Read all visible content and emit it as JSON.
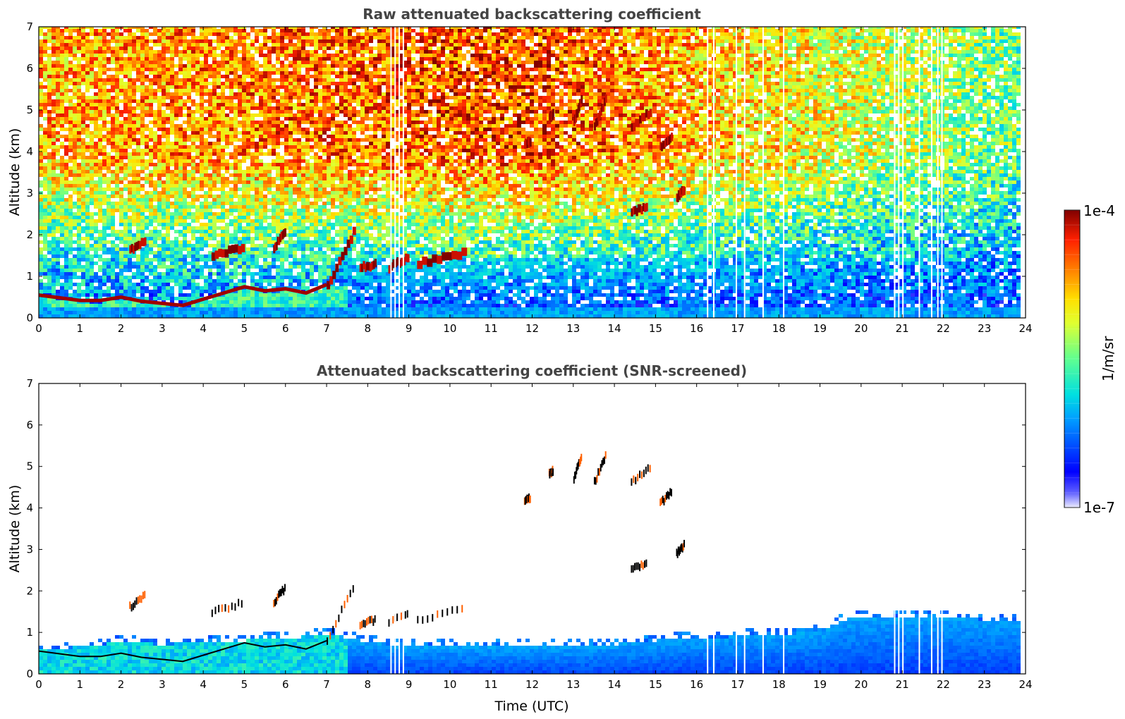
{
  "chart_data": [
    {
      "type": "heatmap",
      "title": "Raw attenuated backscattering coefficient",
      "xlabel": "",
      "ylabel": "Altitude (km)",
      "xlim": [
        0,
        24
      ],
      "ylim": [
        0,
        7
      ],
      "x_ticks": [
        "0",
        "1",
        "2",
        "3",
        "4",
        "5",
        "6",
        "7",
        "8",
        "9",
        "10",
        "11",
        "12",
        "13",
        "14",
        "15",
        "16",
        "17",
        "18",
        "19",
        "20",
        "21",
        "22",
        "23",
        "24"
      ],
      "y_ticks": [
        "0",
        "1",
        "2",
        "3",
        "4",
        "5",
        "6",
        "7"
      ],
      "data_end_time": 23.8,
      "grid": false,
      "boundary_layer_top_km": [
        [
          0.0,
          0.55
        ],
        [
          1.0,
          0.42
        ],
        [
          1.5,
          0.42
        ],
        [
          2.0,
          0.5
        ],
        [
          2.5,
          0.4
        ],
        [
          3.0,
          0.35
        ],
        [
          3.5,
          0.3
        ],
        [
          4.0,
          0.45
        ],
        [
          4.5,
          0.6
        ],
        [
          5.0,
          0.75
        ],
        [
          5.5,
          0.65
        ],
        [
          6.0,
          0.7
        ],
        [
          6.5,
          0.6
        ],
        [
          7.0,
          0.8
        ]
      ],
      "cloud_segments": [
        {
          "t": [
            7.0,
            7.7
          ],
          "alt": [
            0.8,
            2.2
          ]
        },
        {
          "t": [
            5.7,
            6.0
          ],
          "alt": [
            1.7,
            2.1
          ]
        },
        {
          "t": [
            4.2,
            5.0
          ],
          "alt": [
            1.5,
            1.7
          ]
        },
        {
          "t": [
            2.2,
            2.6
          ],
          "alt": [
            1.6,
            1.9
          ]
        },
        {
          "t": [
            7.8,
            8.2
          ],
          "alt": [
            1.2,
            1.3
          ]
        },
        {
          "t": [
            8.5,
            9.0
          ],
          "alt": [
            1.2,
            1.5
          ]
        },
        {
          "t": [
            9.2,
            10.4
          ],
          "alt": [
            1.3,
            1.6
          ]
        },
        {
          "t": [
            13.0,
            13.2
          ],
          "alt": [
            4.7,
            5.3
          ]
        },
        {
          "t": [
            13.5,
            13.8
          ],
          "alt": [
            4.6,
            5.3
          ]
        },
        {
          "t": [
            14.4,
            14.9
          ],
          "alt": [
            4.6,
            5.0
          ]
        },
        {
          "t": [
            15.1,
            15.4
          ],
          "alt": [
            4.1,
            4.4
          ]
        },
        {
          "t": [
            15.5,
            15.7
          ],
          "alt": [
            2.9,
            3.1
          ]
        },
        {
          "t": [
            14.4,
            14.8
          ],
          "alt": [
            2.55,
            2.65
          ]
        },
        {
          "t": [
            11.8,
            11.95
          ],
          "alt": [
            4.2,
            4.25
          ]
        },
        {
          "t": [
            12.4,
            12.5
          ],
          "alt": [
            4.8,
            4.9
          ]
        }
      ],
      "data_gaps_hours": [
        8.55,
        8.65,
        8.75,
        8.85,
        16.25,
        16.4,
        16.95,
        17.15,
        17.6,
        18.1,
        20.8,
        20.9,
        21.0,
        21.4,
        21.7,
        21.85,
        21.95
      ]
    },
    {
      "type": "heatmap",
      "title": "Attenuated backscattering coefficient (SNR-screened)",
      "xlabel": "Time (UTC)",
      "ylabel": "Altitude (km)",
      "xlim": [
        0,
        24
      ],
      "ylim": [
        0,
        7
      ],
      "x_ticks": [
        "0",
        "1",
        "2",
        "3",
        "4",
        "5",
        "6",
        "7",
        "8",
        "9",
        "10",
        "11",
        "12",
        "13",
        "14",
        "15",
        "16",
        "17",
        "18",
        "19",
        "20",
        "21",
        "22",
        "23",
        "24"
      ],
      "y_ticks": [
        "0",
        "1",
        "2",
        "3",
        "4",
        "5",
        "6",
        "7"
      ],
      "data_end_time": 23.8,
      "grid": false,
      "valid_top_km": [
        [
          0.0,
          0.6
        ],
        [
          1.0,
          0.7
        ],
        [
          2.0,
          0.8
        ],
        [
          3.0,
          0.75
        ],
        [
          4.0,
          0.8
        ],
        [
          5.0,
          0.85
        ],
        [
          6.0,
          0.9
        ],
        [
          7.0,
          1.0
        ],
        [
          8.0,
          0.8
        ],
        [
          9.0,
          0.7
        ],
        [
          10.0,
          0.7
        ],
        [
          11.0,
          0.7
        ],
        [
          12.0,
          0.7
        ],
        [
          13.0,
          0.7
        ],
        [
          14.0,
          0.75
        ],
        [
          15.0,
          0.85
        ],
        [
          16.0,
          0.9
        ],
        [
          17.0,
          0.95
        ],
        [
          18.0,
          1.0
        ],
        [
          19.0,
          1.05
        ],
        [
          19.5,
          1.35
        ],
        [
          20.0,
          1.4
        ],
        [
          21.0,
          1.4
        ],
        [
          22.0,
          1.4
        ],
        [
          23.0,
          1.35
        ],
        [
          23.8,
          1.3
        ]
      ],
      "colorbar": {
        "label": "1/m/sr",
        "max_label": "1e-4",
        "min_label": "1e-7",
        "scale": "log",
        "range": [
          1e-07,
          0.0001
        ],
        "colormap": "jet"
      }
    }
  ]
}
